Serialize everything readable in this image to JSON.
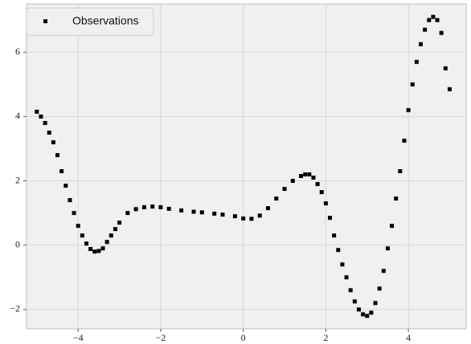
{
  "chart_data": {
    "type": "scatter",
    "series": [
      {
        "name": "Observations",
        "color": "#000000",
        "x": [
          -5.0,
          -4.9,
          -4.8,
          -4.7,
          -4.6,
          -4.5,
          -4.4,
          -4.3,
          -4.2,
          -4.1,
          -4.0,
          -3.9,
          -3.8,
          -3.7,
          -3.6,
          -3.5,
          -3.4,
          -3.3,
          -3.2,
          -3.1,
          -3.0,
          -2.8,
          -2.6,
          -2.4,
          -2.2,
          -2.0,
          -1.8,
          -1.5,
          -1.2,
          -1.0,
          -0.7,
          -0.5,
          -0.2,
          0.0,
          0.2,
          0.4,
          0.6,
          0.8,
          1.0,
          1.2,
          1.4,
          1.5,
          1.6,
          1.7,
          1.8,
          1.9,
          2.0,
          2.1,
          2.2,
          2.3,
          2.4,
          2.5,
          2.6,
          2.7,
          2.8,
          2.9,
          3.0,
          3.1,
          3.2,
          3.3,
          3.4,
          3.5,
          3.6,
          3.7,
          3.8,
          3.9,
          4.0,
          4.1,
          4.2,
          4.3,
          4.4,
          4.5,
          4.6,
          4.7,
          4.8,
          4.9,
          5.0
        ],
        "values": [
          4.15,
          4.0,
          3.8,
          3.5,
          3.2,
          2.8,
          2.3,
          1.85,
          1.4,
          1.0,
          0.6,
          0.3,
          0.05,
          -0.12,
          -0.2,
          -0.18,
          -0.1,
          0.1,
          0.3,
          0.5,
          0.7,
          1.0,
          1.12,
          1.18,
          1.2,
          1.18,
          1.13,
          1.08,
          1.04,
          1.02,
          0.98,
          0.95,
          0.9,
          0.83,
          0.82,
          0.92,
          1.15,
          1.45,
          1.75,
          2.0,
          2.15,
          2.2,
          2.2,
          2.1,
          1.9,
          1.65,
          1.3,
          0.85,
          0.3,
          -0.15,
          -0.6,
          -1.0,
          -1.4,
          -1.75,
          -2.0,
          -2.15,
          -2.2,
          -2.1,
          -1.8,
          -1.35,
          -0.8,
          -0.1,
          0.6,
          1.45,
          2.3,
          3.25,
          4.2,
          5.0,
          5.7,
          6.25,
          6.7,
          7.0,
          7.1,
          7.0,
          6.6,
          5.5,
          4.85
        ]
      }
    ],
    "xlim": [
      -5.25,
      5.4
    ],
    "ylim": [
      -2.6,
      7.5
    ],
    "xticks": [
      {
        "value": -4,
        "label": "−4"
      },
      {
        "value": -2,
        "label": "−2"
      },
      0,
      2,
      4
    ],
    "yticks": [
      {
        "value": -2,
        "label": "−2"
      },
      0,
      2,
      4,
      6
    ],
    "grid": true,
    "legend": "upper left"
  }
}
